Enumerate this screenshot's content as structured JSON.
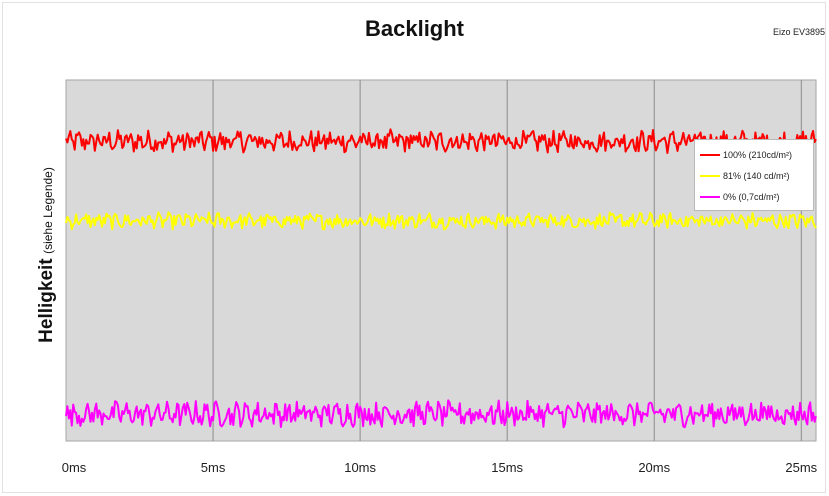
{
  "chart_data": {
    "type": "line",
    "title": "Backlight",
    "device_label": "Eizo EV3895",
    "ylabel": "Helligkeit",
    "ylabel_note": "(siehe Legende)",
    "x_ticks": [
      "0ms",
      "5ms",
      "10ms",
      "15ms",
      "20ms",
      "25ms"
    ],
    "xlim": [
      0,
      25.5
    ],
    "x_unit": "ms",
    "grid": "vertical",
    "legend_position": "top-right",
    "plot_background": "#d9d9d9",
    "series": [
      {
        "name": "100% (210cd/m²)",
        "color": "#ff0000",
        "level": 0.83,
        "noise": 0.025
      },
      {
        "name": "81% (140 cd/m²)",
        "color": "#ffff00",
        "level": 0.61,
        "noise": 0.018
      },
      {
        "name": "0% (0,7cd/m²)",
        "color": "#ff00ff",
        "level": 0.075,
        "noise": 0.028
      }
    ]
  }
}
